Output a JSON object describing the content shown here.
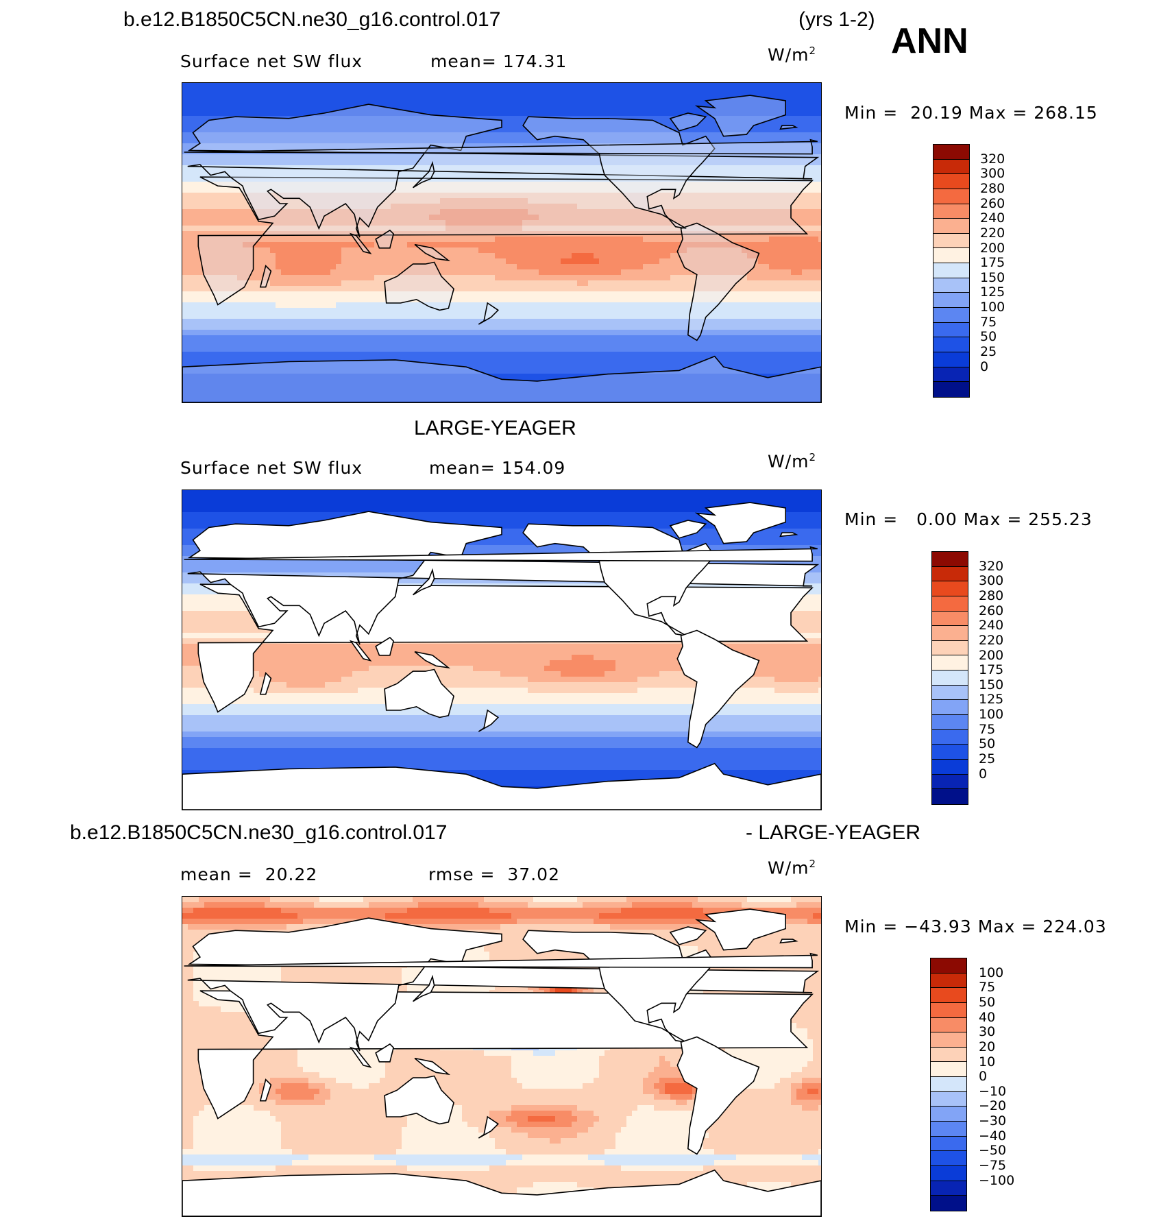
{
  "header": {
    "case_name": "b.e12.B1850C5CN.ne30_g16.control.017",
    "years": "(yrs 1-2)",
    "season": "ANN"
  },
  "colors": {
    "abs_palette": [
      "#00108a",
      "#0824b4",
      "#0a3cd8",
      "#1e52e6",
      "#3a6aee",
      "#5c86f2",
      "#82a4f6",
      "#a8c2f8",
      "#d4e6fa",
      "#fff2e2",
      "#fdd2b8",
      "#fbb090",
      "#f88c66",
      "#f46a40",
      "#e84a1e",
      "#c82a08",
      "#8c0a02"
    ],
    "diff_palette": [
      "#00108a",
      "#0824b4",
      "#0a3cd8",
      "#1e52e6",
      "#3a6aee",
      "#5c86f2",
      "#82a4f6",
      "#a8c2f8",
      "#d4e6fa",
      "#fff2e2",
      "#fdd2b8",
      "#fbb090",
      "#f88c66",
      "#f46a40",
      "#e84a1e",
      "#c82a08",
      "#8c0a02"
    ]
  },
  "chart_data": [
    {
      "type": "heatmap",
      "title": "b.e12.B1850C5CN.ne30_g16.control.017",
      "variable": "Surface net SW flux",
      "mean_label": "mean=",
      "mean": "174.31",
      "units_base": "W/m",
      "units_exp": "2",
      "min_label": "Min =",
      "min": "20.19",
      "max_label": "Max =",
      "max": "268.15",
      "colorbar_levels": [
        "320",
        "300",
        "280",
        "260",
        "240",
        "220",
        "200",
        "175",
        "150",
        "125",
        "100",
        "75",
        "50",
        "25",
        "0"
      ]
    },
    {
      "type": "heatmap",
      "title": "LARGE-YEAGER",
      "variable": "Surface net SW flux",
      "mean_label": "mean=",
      "mean": "154.09",
      "units_base": "W/m",
      "units_exp": "2",
      "min_label": "Min =",
      "min": "0.00",
      "max_label": "Max =",
      "max": "255.23",
      "colorbar_levels": [
        "320",
        "300",
        "280",
        "260",
        "240",
        "220",
        "200",
        "175",
        "150",
        "125",
        "100",
        "75",
        "50",
        "25",
        "0"
      ]
    },
    {
      "type": "heatmap",
      "title_left": "b.e12.B1850C5CN.ne30_g16.control.017",
      "title_right": "- LARGE-YEAGER",
      "mean_label": "mean =",
      "mean": "20.22",
      "rmse_label": "rmse =",
      "rmse": "37.02",
      "units_base": "W/m",
      "units_exp": "2",
      "min_label": "Min =",
      "min": "−43.93",
      "max_label": "Max =",
      "max": "224.03",
      "colorbar_levels": [
        "100",
        "75",
        "50",
        "40",
        "30",
        "20",
        "10",
        "0",
        "−10",
        "−20",
        "−30",
        "−40",
        "−50",
        "−75",
        "−100"
      ]
    }
  ]
}
